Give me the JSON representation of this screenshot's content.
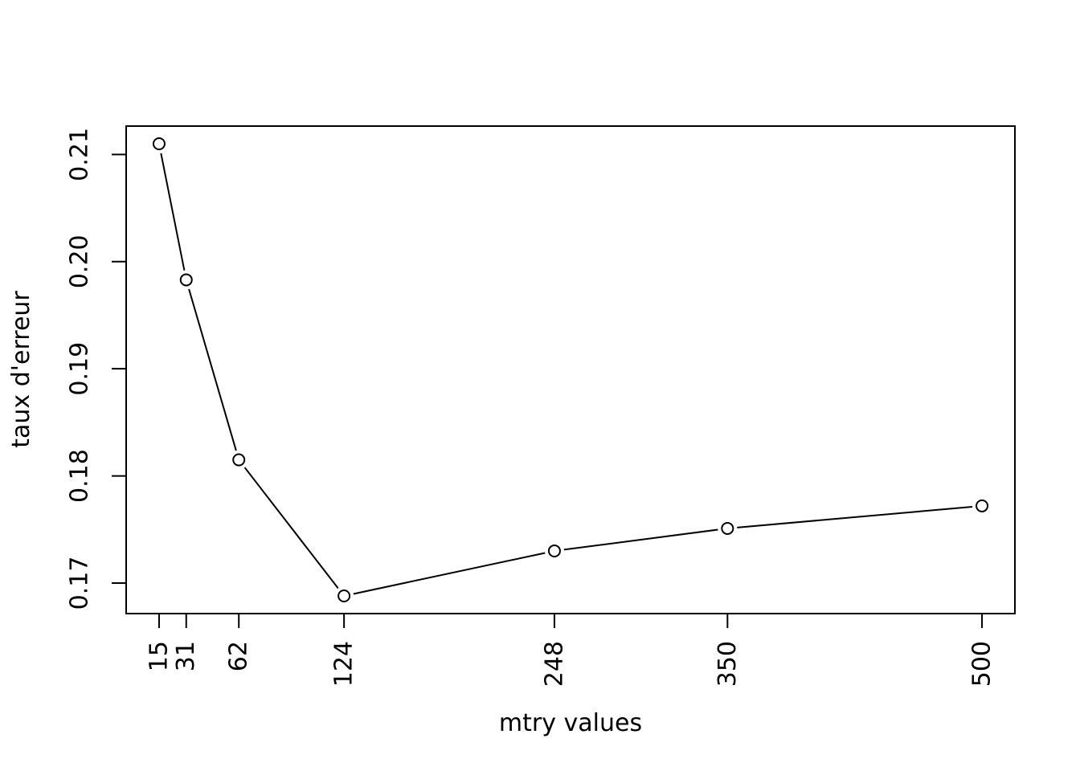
{
  "chart_data": {
    "type": "line",
    "title": "",
    "xlabel": "mtry values",
    "ylabel": "taux d'erreur",
    "x": [
      15,
      31,
      62,
      124,
      248,
      350,
      500
    ],
    "x_tick_labels": [
      "15",
      "31",
      "62",
      "124",
      "248",
      "350",
      "500"
    ],
    "y": [
      0.211,
      0.1983,
      0.1815,
      0.1688,
      0.173,
      0.1751,
      0.1772
    ],
    "y_ticks": [
      0.17,
      0.18,
      0.19,
      0.2,
      0.21
    ],
    "y_tick_labels": [
      "0.17",
      "0.18",
      "0.19",
      "0.20",
      "0.21"
    ],
    "xlim": [
      -4.4,
      519.4
    ],
    "ylim": [
      0.16715,
      0.21265
    ],
    "marker": "open-circle",
    "line_color": "#000000",
    "grid": false,
    "legend": "none"
  }
}
